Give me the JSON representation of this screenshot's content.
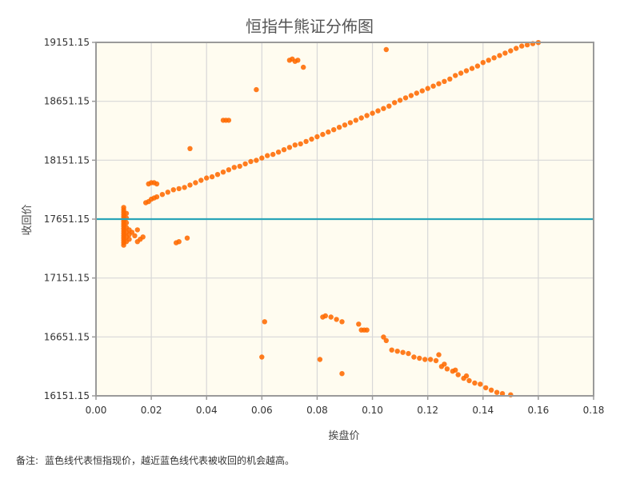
{
  "chart_data": {
    "type": "scatter",
    "title": "恒指牛熊证分佈图",
    "xlabel": "挨盘价",
    "ylabel": "收回价",
    "xlim": [
      0,
      0.18
    ],
    "ylim": [
      16151.15,
      19151.15
    ],
    "xticks": [
      "0.00",
      "0.02",
      "0.04",
      "0.06",
      "0.08",
      "0.10",
      "0.12",
      "0.14",
      "0.16",
      "0.18"
    ],
    "xtick_values": [
      0,
      0.02,
      0.04,
      0.06,
      0.08,
      0.1,
      0.12,
      0.14,
      0.16,
      0.18
    ],
    "yticks": [
      "16151.15",
      "16651.15",
      "17151.15",
      "17651.15",
      "18151.15",
      "18651.15",
      "19151.15"
    ],
    "ytick_values": [
      16151.15,
      16651.15,
      17151.15,
      17651.15,
      18151.15,
      18651.15,
      19151.15
    ],
    "grid": true,
    "reference_line": {
      "y": 17651.15,
      "color": "#2aa5b8"
    },
    "point_color": "#ff6a00",
    "plot_background": "#fffcf0",
    "series": [
      {
        "points": [
          [
            0.01,
            17430
          ],
          [
            0.01,
            17450
          ],
          [
            0.01,
            17470
          ],
          [
            0.01,
            17490
          ],
          [
            0.01,
            17510
          ],
          [
            0.01,
            17530
          ],
          [
            0.01,
            17550
          ],
          [
            0.01,
            17570
          ],
          [
            0.01,
            17590
          ],
          [
            0.01,
            17610
          ],
          [
            0.01,
            17630
          ],
          [
            0.01,
            17650
          ],
          [
            0.01,
            17670
          ],
          [
            0.01,
            17690
          ],
          [
            0.01,
            17710
          ],
          [
            0.01,
            17730
          ],
          [
            0.01,
            17750
          ],
          [
            0.011,
            17460
          ],
          [
            0.011,
            17500
          ],
          [
            0.011,
            17540
          ],
          [
            0.011,
            17580
          ],
          [
            0.011,
            17620
          ],
          [
            0.011,
            17660
          ],
          [
            0.011,
            17700
          ],
          [
            0.012,
            17480
          ],
          [
            0.012,
            17520
          ],
          [
            0.012,
            17560
          ],
          [
            0.013,
            17540
          ],
          [
            0.014,
            17510
          ],
          [
            0.015,
            17460
          ],
          [
            0.015,
            17560
          ],
          [
            0.016,
            17480
          ],
          [
            0.017,
            17500
          ],
          [
            0.018,
            17790
          ],
          [
            0.019,
            17800
          ],
          [
            0.02,
            17820
          ],
          [
            0.021,
            17830
          ],
          [
            0.022,
            17840
          ],
          [
            0.024,
            17860
          ],
          [
            0.026,
            17880
          ],
          [
            0.028,
            17900
          ],
          [
            0.03,
            17910
          ],
          [
            0.032,
            17920
          ],
          [
            0.034,
            17940
          ],
          [
            0.036,
            17960
          ],
          [
            0.038,
            17980
          ],
          [
            0.04,
            18000
          ],
          [
            0.042,
            18010
          ],
          [
            0.044,
            18030
          ],
          [
            0.046,
            18050
          ],
          [
            0.048,
            18070
          ],
          [
            0.05,
            18090
          ],
          [
            0.052,
            18100
          ],
          [
            0.054,
            18120
          ],
          [
            0.056,
            18140
          ],
          [
            0.058,
            18150
          ],
          [
            0.06,
            18170
          ],
          [
            0.062,
            18190
          ],
          [
            0.064,
            18200
          ],
          [
            0.066,
            18220
          ],
          [
            0.068,
            18240
          ],
          [
            0.07,
            18260
          ],
          [
            0.072,
            18280
          ],
          [
            0.074,
            18290
          ],
          [
            0.076,
            18310
          ],
          [
            0.078,
            18330
          ],
          [
            0.08,
            18350
          ],
          [
            0.082,
            18370
          ],
          [
            0.084,
            18390
          ],
          [
            0.086,
            18410
          ],
          [
            0.088,
            18430
          ],
          [
            0.09,
            18450
          ],
          [
            0.092,
            18470
          ],
          [
            0.094,
            18490
          ],
          [
            0.096,
            18510
          ],
          [
            0.098,
            18530
          ],
          [
            0.1,
            18550
          ],
          [
            0.102,
            18570
          ],
          [
            0.104,
            18590
          ],
          [
            0.106,
            18610
          ],
          [
            0.108,
            18640
          ],
          [
            0.11,
            18660
          ],
          [
            0.112,
            18680
          ],
          [
            0.114,
            18700
          ],
          [
            0.116,
            18720
          ],
          [
            0.118,
            18740
          ],
          [
            0.12,
            18760
          ],
          [
            0.122,
            18780
          ],
          [
            0.124,
            18800
          ],
          [
            0.126,
            18820
          ],
          [
            0.128,
            18840
          ],
          [
            0.13,
            18870
          ],
          [
            0.132,
            18890
          ],
          [
            0.134,
            18910
          ],
          [
            0.136,
            18930
          ],
          [
            0.138,
            18950
          ],
          [
            0.14,
            18980
          ],
          [
            0.142,
            19000
          ],
          [
            0.144,
            19020
          ],
          [
            0.146,
            19040
          ],
          [
            0.148,
            19060
          ],
          [
            0.15,
            19080
          ],
          [
            0.152,
            19100
          ],
          [
            0.154,
            19120
          ],
          [
            0.156,
            19130
          ],
          [
            0.158,
            19140
          ],
          [
            0.16,
            19150
          ],
          [
            0.019,
            17950
          ],
          [
            0.02,
            17960
          ],
          [
            0.021,
            17960
          ],
          [
            0.022,
            17950
          ],
          [
            0.029,
            17450
          ],
          [
            0.03,
            17460
          ],
          [
            0.033,
            17490
          ],
          [
            0.034,
            18250
          ],
          [
            0.046,
            18490
          ],
          [
            0.047,
            18490
          ],
          [
            0.048,
            18490
          ],
          [
            0.058,
            18750
          ],
          [
            0.07,
            19000
          ],
          [
            0.071,
            19010
          ],
          [
            0.072,
            18990
          ],
          [
            0.073,
            19000
          ],
          [
            0.075,
            18940
          ],
          [
            0.105,
            19090
          ],
          [
            0.06,
            16480
          ],
          [
            0.061,
            16780
          ],
          [
            0.081,
            16460
          ],
          [
            0.082,
            16820
          ],
          [
            0.083,
            16830
          ],
          [
            0.085,
            16820
          ],
          [
            0.087,
            16800
          ],
          [
            0.089,
            16780
          ],
          [
            0.089,
            16340
          ],
          [
            0.095,
            16760
          ],
          [
            0.096,
            16710
          ],
          [
            0.097,
            16710
          ],
          [
            0.098,
            16710
          ],
          [
            0.104,
            16650
          ],
          [
            0.105,
            16620
          ],
          [
            0.107,
            16540
          ],
          [
            0.109,
            16530
          ],
          [
            0.111,
            16520
          ],
          [
            0.113,
            16510
          ],
          [
            0.115,
            16480
          ],
          [
            0.117,
            16470
          ],
          [
            0.119,
            16460
          ],
          [
            0.121,
            16460
          ],
          [
            0.123,
            16450
          ],
          [
            0.125,
            16400
          ],
          [
            0.127,
            16380
          ],
          [
            0.129,
            16360
          ],
          [
            0.131,
            16330
          ],
          [
            0.133,
            16300
          ],
          [
            0.135,
            16280
          ],
          [
            0.137,
            16260
          ],
          [
            0.139,
            16250
          ],
          [
            0.141,
            16220
          ],
          [
            0.143,
            16200
          ],
          [
            0.145,
            16180
          ],
          [
            0.147,
            16170
          ],
          [
            0.15,
            16160
          ],
          [
            0.124,
            16500
          ],
          [
            0.126,
            16420
          ],
          [
            0.13,
            16370
          ],
          [
            0.134,
            16320
          ]
        ]
      }
    ]
  },
  "note": {
    "label": "备注:",
    "text": "蓝色线代表恒指现价，越近蓝色线代表被收回的机会越高。"
  }
}
